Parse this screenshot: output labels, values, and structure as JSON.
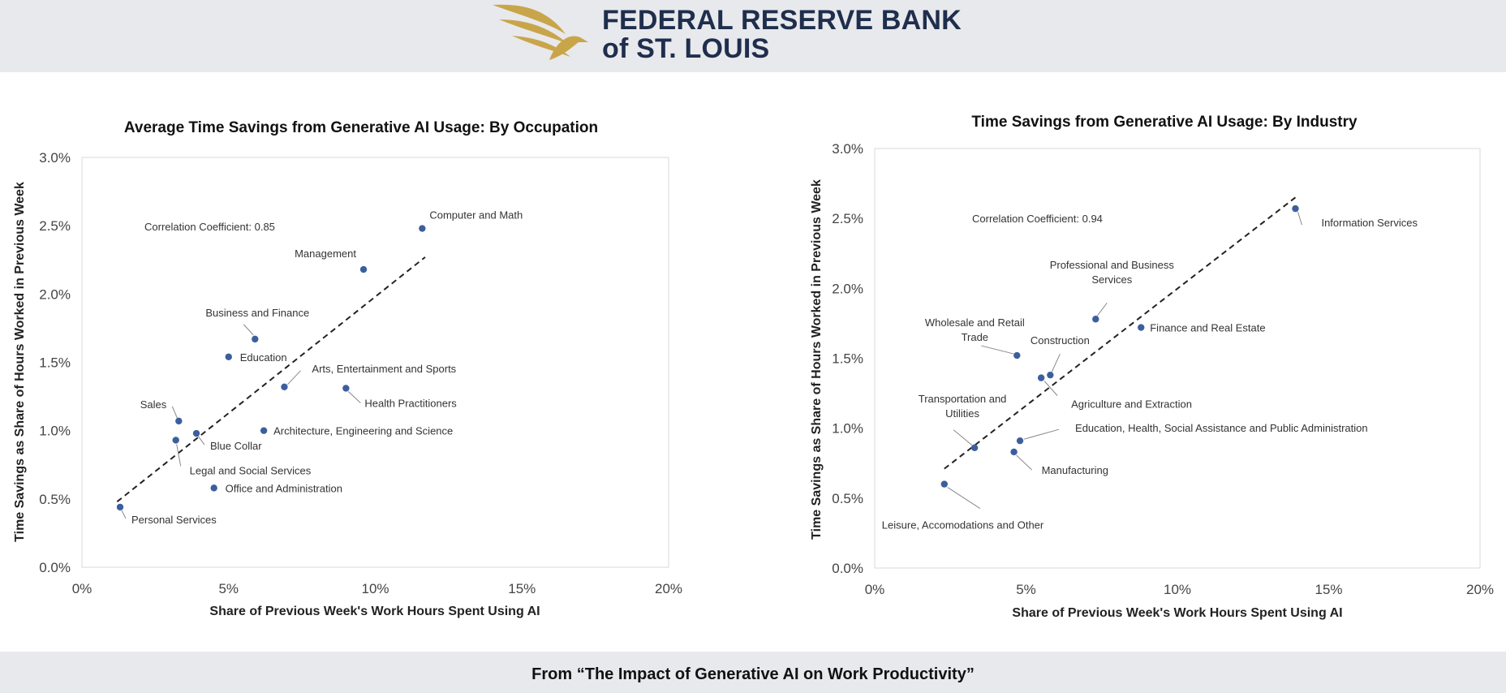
{
  "header": {
    "brand_line1": "FEDERAL RESERVE BANK",
    "brand_line2": "of ST. LOUIS",
    "brand_color": "#1f2e4d",
    "logo_color": "#c9a54a"
  },
  "footer": {
    "text": "From “The Impact of Generative AI on Work Productivity”"
  },
  "chart_data": [
    {
      "type": "scatter",
      "title": "Average Time Savings from Generative AI Usage: By Occupation",
      "xlabel": "Share of Previous Week's Work Hours Spent Using AI",
      "ylabel": "Time Savings as Share of Hours Worked in Previous Week",
      "xlim": [
        0,
        20
      ],
      "ylim": [
        0,
        3
      ],
      "xticks": [
        0,
        5,
        10,
        15,
        20
      ],
      "xtick_labels": [
        "0%",
        "5%",
        "10%",
        "15%",
        "20%"
      ],
      "yticks": [
        0,
        0.5,
        1,
        1.5,
        2,
        2.5,
        3
      ],
      "ytick_labels": [
        "0.0%",
        "0.5%",
        "1.0%",
        "1.5%",
        "2.0%",
        "2.5%",
        "3.0%"
      ],
      "annotation": "Correlation Coefficient: 0.85",
      "trendline": {
        "x": [
          1.2,
          11.7
        ],
        "y": [
          0.48,
          2.27
        ]
      },
      "marker_color": "#3b5f9e",
      "points": [
        {
          "label": "Computer and Math",
          "x": 11.6,
          "y": 2.48
        },
        {
          "label": "Management",
          "x": 9.6,
          "y": 2.18
        },
        {
          "label": "Business and Finance",
          "x": 5.9,
          "y": 1.67
        },
        {
          "label": "Education",
          "x": 5.0,
          "y": 1.54
        },
        {
          "label": "Arts, Entertainment and Sports",
          "x": 6.9,
          "y": 1.32
        },
        {
          "label": "Health Practitioners",
          "x": 9.0,
          "y": 1.31
        },
        {
          "label": "Sales",
          "x": 3.3,
          "y": 1.07
        },
        {
          "label": "Architecture, Engineering and Science",
          "x": 6.2,
          "y": 1.0
        },
        {
          "label": "Blue Collar",
          "x": 3.9,
          "y": 0.98
        },
        {
          "label": "Legal and Social Services",
          "x": 3.2,
          "y": 0.93
        },
        {
          "label": "Office and Administration",
          "x": 4.5,
          "y": 0.58
        },
        {
          "label": "Personal Services",
          "x": 1.3,
          "y": 0.44
        }
      ]
    },
    {
      "type": "scatter",
      "title": "Time Savings from Generative AI Usage: By Industry",
      "xlabel": "Share of Previous Week's Work Hours Spent Using AI",
      "ylabel": "Time Savings as Share of Hours Worked in Previous Week",
      "xlim": [
        0,
        20
      ],
      "ylim": [
        0,
        3
      ],
      "xticks": [
        0,
        5,
        10,
        15,
        20
      ],
      "xtick_labels": [
        "0%",
        "5%",
        "10%",
        "15%",
        "20%"
      ],
      "yticks": [
        0,
        0.5,
        1,
        1.5,
        2,
        2.5,
        3
      ],
      "ytick_labels": [
        "0.0%",
        "0.5%",
        "1.0%",
        "1.5%",
        "2.0%",
        "2.5%",
        "3.0%"
      ],
      "annotation": "Correlation Coefficient: 0.94",
      "trendline": {
        "x": [
          2.3,
          13.9
        ],
        "y": [
          0.71,
          2.65
        ]
      },
      "marker_color": "#3b5f9e",
      "points": [
        {
          "label": "Information Services",
          "x": 13.9,
          "y": 2.57
        },
        {
          "label": "Professional and Business Services",
          "x": 7.3,
          "y": 1.78
        },
        {
          "label": "Finance and Real Estate",
          "x": 8.8,
          "y": 1.72
        },
        {
          "label": "Wholesale and Retail Trade",
          "x": 4.7,
          "y": 1.52
        },
        {
          "label": "Construction",
          "x": 5.8,
          "y": 1.38
        },
        {
          "label": "Agriculture and Extraction",
          "x": 5.5,
          "y": 1.36
        },
        {
          "label": "Education, Health, Social Assistance and Public Administration",
          "x": 4.8,
          "y": 0.91
        },
        {
          "label": "Transportation and Utilities",
          "x": 3.3,
          "y": 0.86
        },
        {
          "label": "Manufacturing",
          "x": 4.6,
          "y": 0.83
        },
        {
          "label": "Leisure, Accomodations and Other",
          "x": 2.3,
          "y": 0.6
        }
      ]
    }
  ]
}
